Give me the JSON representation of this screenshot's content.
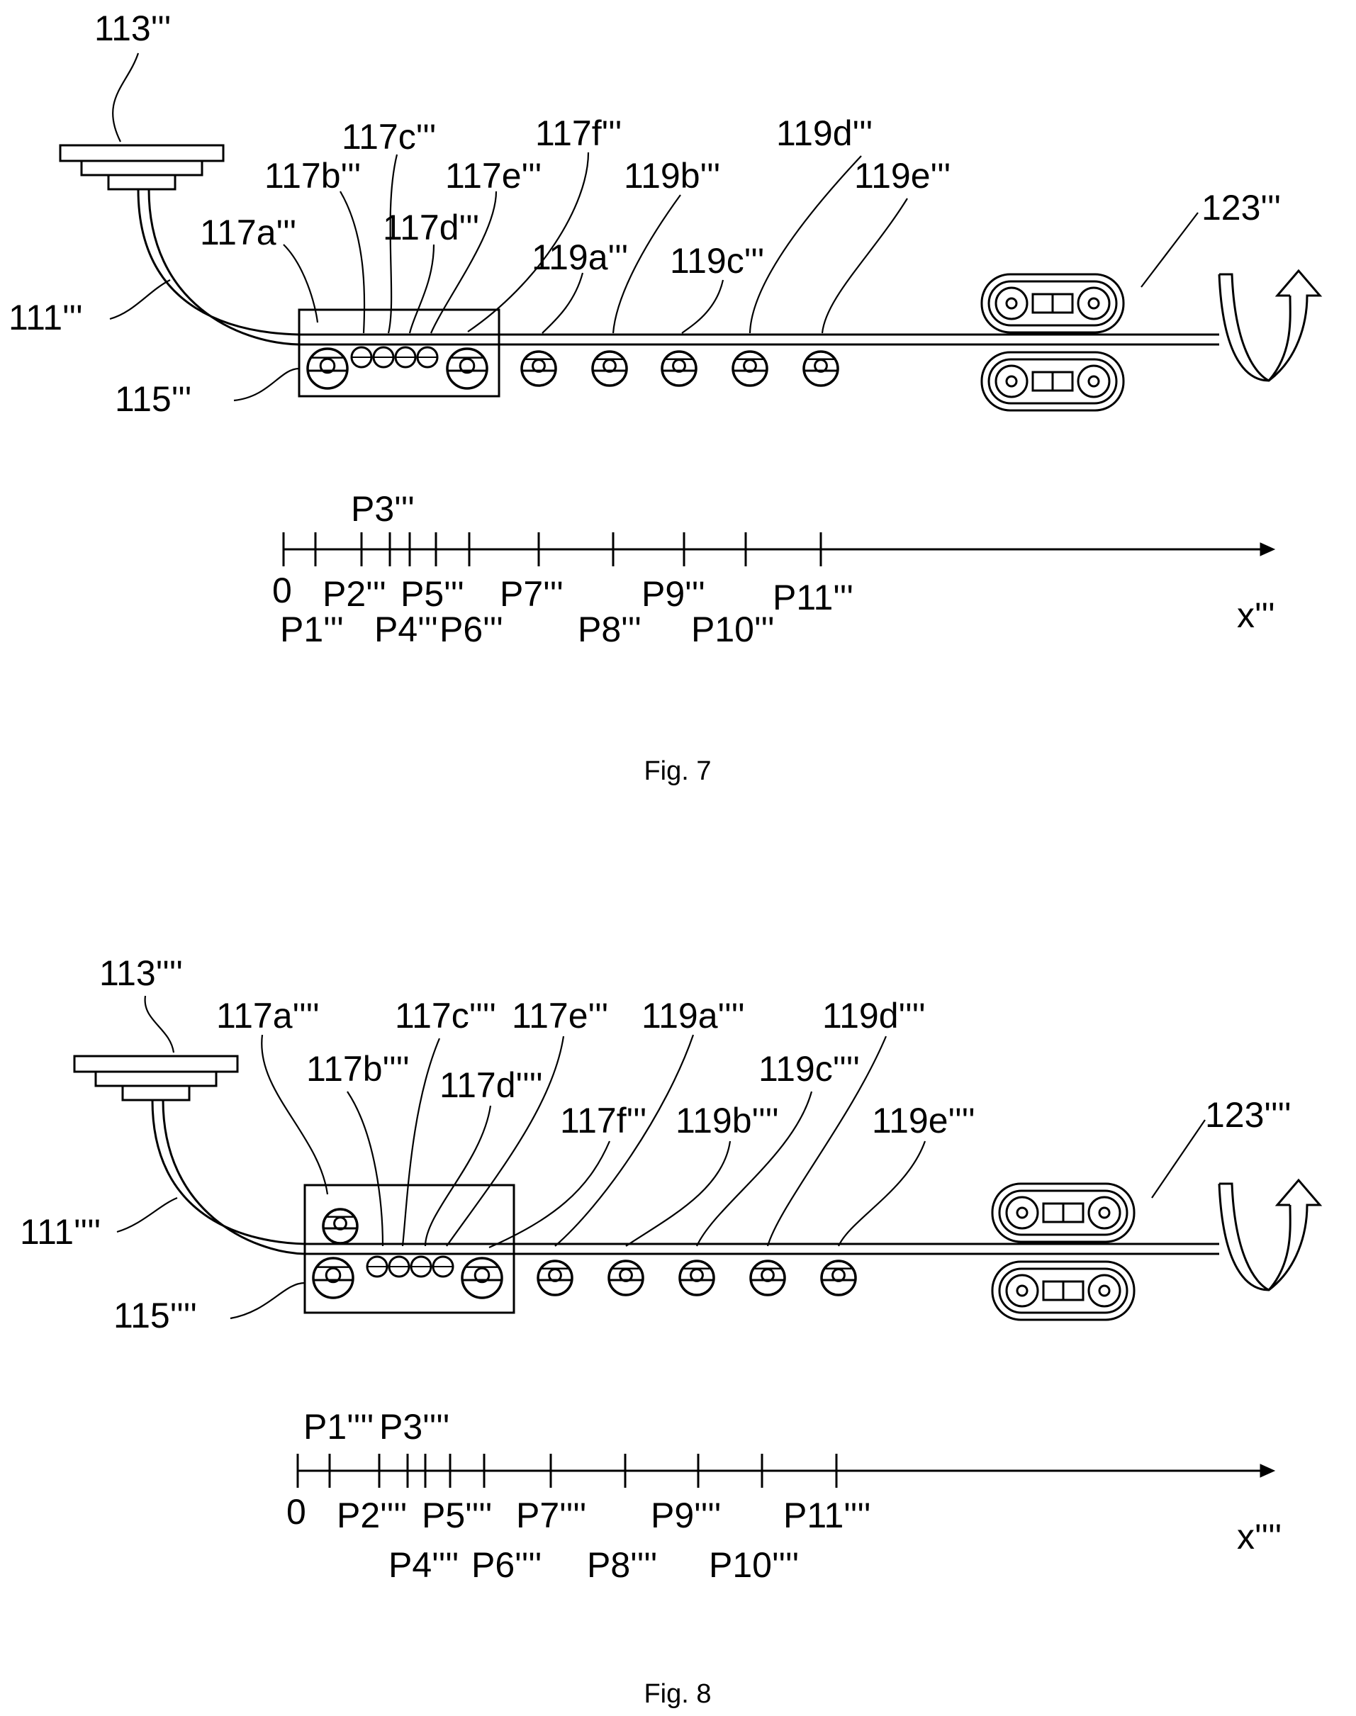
{
  "figures": [
    {
      "caption": "Fig. 7",
      "ref_labels": {
        "nozzle": "113'''",
        "fiber": "111'''",
        "housing": "115'''",
        "puller": "123'''",
        "r117a": "117a'''",
        "r117b": "117b'''",
        "r117c": "117c'''",
        "r117d": "117d'''",
        "r117e": "117e'''",
        "r117f": "117f'''",
        "r119a": "119a'''",
        "r119b": "119b'''",
        "r119c": "119c'''",
        "r119d": "119d'''",
        "r119e": "119e'''"
      },
      "axis": {
        "origin": "0",
        "label": "x'''",
        "ticks": [
          "P1'''",
          "P2'''",
          "P3'''",
          "P4'''",
          "P5'''",
          "P6'''",
          "P7'''",
          "P8'''",
          "P9'''",
          "P10'''",
          "P11'''"
        ]
      }
    },
    {
      "caption": "Fig. 8",
      "ref_labels": {
        "nozzle": "113''''",
        "fiber": "111''''",
        "housing": "115''''",
        "puller": "123''''",
        "r117a": "117a''''",
        "r117b": "117b''''",
        "r117c": "117c''''",
        "r117d": "117d''''",
        "r117e": "117e'''",
        "r117f": "117f'''",
        "r119a": "119a''''",
        "r119b": "119b''''",
        "r119c": "119c''''",
        "r119d": "119d''''",
        "r119e": "119e''''"
      },
      "axis": {
        "origin": "0",
        "label": "x''''",
        "ticks": [
          "P1''''",
          "P2''''",
          "P3''''",
          "P4''''",
          "P5''''",
          "P6''''",
          "P7''''",
          "P8''''",
          "P9''''",
          "P10''''",
          "P11''''"
        ]
      }
    }
  ],
  "icons": [
    "spinneret-icon",
    "roller-icon",
    "belt-puller-icon",
    "winding-arrow-icon"
  ]
}
